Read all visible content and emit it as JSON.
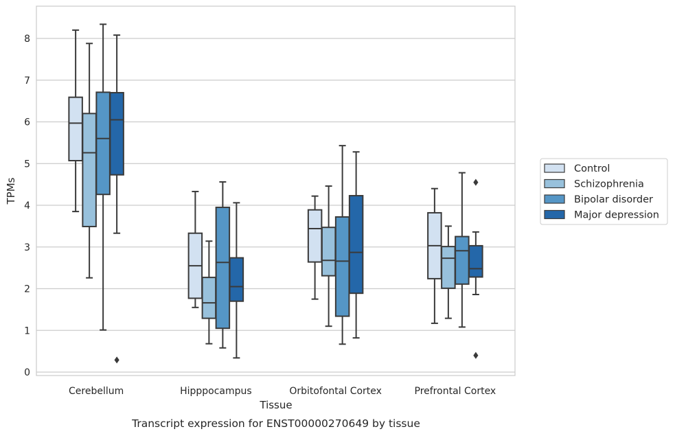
{
  "chart_data": {
    "type": "boxplot",
    "xlabel": "Tissue",
    "ylabel": "TPMs",
    "caption": "Transcript expression for ENST00000270649 by tissue",
    "ylim": [
      -0.1,
      8.75
    ],
    "yticks": [
      0,
      1,
      2,
      3,
      4,
      5,
      6,
      7,
      8
    ],
    "grid": "horizontal",
    "legend_position": "right",
    "categories": [
      "Cerebellum",
      "Hipppocampus",
      "Orbitofontal Cortex",
      "Prefrontal Cortex"
    ],
    "series": [
      {
        "name": "Control",
        "color": "#d2e1f1",
        "boxes": [
          {
            "whislo": 3.85,
            "q1": 5.07,
            "med": 5.97,
            "q3": 6.59,
            "whishi": 8.2,
            "fliers": []
          },
          {
            "whislo": 1.55,
            "q1": 1.77,
            "med": 2.55,
            "q3": 3.33,
            "whishi": 4.33,
            "fliers": []
          },
          {
            "whislo": 1.75,
            "q1": 2.64,
            "med": 3.44,
            "q3": 3.89,
            "whishi": 4.22,
            "fliers": []
          },
          {
            "whislo": 1.17,
            "q1": 2.24,
            "med": 3.03,
            "q3": 3.82,
            "whishi": 4.4,
            "fliers": []
          }
        ]
      },
      {
        "name": "Schizophrenia",
        "color": "#98c1dc",
        "boxes": [
          {
            "whislo": 2.26,
            "q1": 3.49,
            "med": 5.26,
            "q3": 6.2,
            "whishi": 7.88,
            "fliers": []
          },
          {
            "whislo": 0.68,
            "q1": 1.29,
            "med": 1.66,
            "q3": 2.27,
            "whishi": 3.14,
            "fliers": []
          },
          {
            "whislo": 1.1,
            "q1": 2.31,
            "med": 2.68,
            "q3": 3.47,
            "whishi": 4.46,
            "fliers": []
          },
          {
            "whislo": 1.29,
            "q1": 2.01,
            "med": 2.73,
            "q3": 3.01,
            "whishi": 3.5,
            "fliers": []
          }
        ]
      },
      {
        "name": "Bipolar disorder",
        "color": "#5596c6",
        "boxes": [
          {
            "whislo": 1.01,
            "q1": 4.26,
            "med": 5.6,
            "q3": 6.71,
            "whishi": 8.34,
            "fliers": []
          },
          {
            "whislo": 0.58,
            "q1": 1.05,
            "med": 2.63,
            "q3": 3.95,
            "whishi": 4.56,
            "fliers": []
          },
          {
            "whislo": 0.67,
            "q1": 1.34,
            "med": 2.66,
            "q3": 3.72,
            "whishi": 5.43,
            "fliers": []
          },
          {
            "whislo": 1.08,
            "q1": 2.11,
            "med": 2.91,
            "q3": 3.25,
            "whishi": 4.78,
            "fliers": []
          }
        ]
      },
      {
        "name": "Major depression",
        "color": "#2467a9",
        "boxes": [
          {
            "whislo": 3.33,
            "q1": 4.73,
            "med": 6.05,
            "q3": 6.7,
            "whishi": 8.08,
            "fliers": [
              0.29
            ]
          },
          {
            "whislo": 0.34,
            "q1": 1.7,
            "med": 2.05,
            "q3": 2.74,
            "whishi": 4.06,
            "fliers": []
          },
          {
            "whislo": 0.82,
            "q1": 1.89,
            "med": 2.87,
            "q3": 4.23,
            "whishi": 5.28,
            "fliers": []
          },
          {
            "whislo": 1.86,
            "q1": 2.28,
            "med": 2.48,
            "q3": 3.03,
            "whishi": 3.36,
            "fliers": [
              4.55,
              0.4
            ]
          }
        ]
      }
    ]
  }
}
